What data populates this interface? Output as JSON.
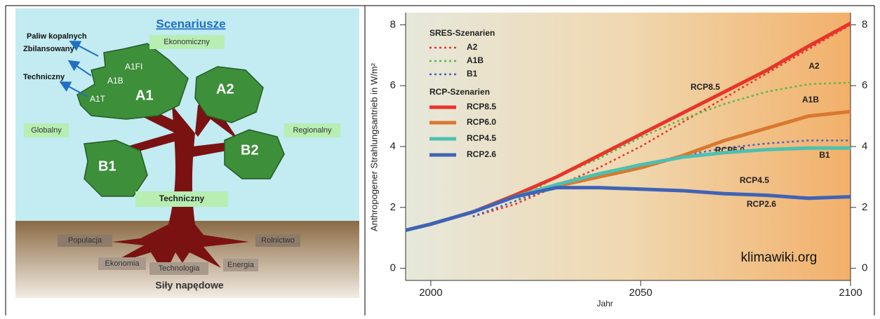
{
  "diagram": {
    "title": "Scenariusze",
    "arrow_labels": [
      "Paliw kopalnych",
      "Zbilansowany",
      "Techniczny"
    ],
    "top_label": "Ekonomiczny",
    "side_labels": [
      "Globalny",
      "Regionalny"
    ],
    "trunk_label": "Techniczny",
    "leaf_small": [
      "A1FI",
      "A1B",
      "A1T"
    ],
    "leaf_big": [
      "A1",
      "A2",
      "B1",
      "B2"
    ],
    "roots": [
      "Populacja",
      "Ekonomia",
      "Technologia",
      "Energia",
      "Rolnictwo"
    ],
    "footer": "Siły napędowe"
  },
  "chart_data": {
    "type": "line",
    "xlabel": "Jahr",
    "ylabel": "Anthropogener Strahlungsantrieb in W/m²",
    "watermark": "klimawiki.org",
    "legend_titles": [
      "SRES-Szenarien",
      "RCP-Szenarien"
    ],
    "x": [
      1994,
      2000,
      2010,
      2020,
      2030,
      2040,
      2050,
      2060,
      2070,
      2080,
      2090,
      2100
    ],
    "xlim": [
      1994,
      2100
    ],
    "xticks": [
      2000,
      2050,
      2100
    ],
    "ylim": [
      -0.4,
      8.4
    ],
    "yticks": [
      0,
      2,
      4,
      6,
      8
    ],
    "y2lim": [
      -0.4,
      8.4
    ],
    "y2ticks": [
      0,
      2,
      4,
      6,
      8
    ],
    "series": [
      {
        "name": "A2",
        "color": "#e8342a",
        "dashed": true,
        "values": [
          null,
          null,
          1.7,
          2.1,
          2.7,
          3.3,
          4.0,
          4.8,
          5.6,
          6.4,
          7.2,
          8.0
        ]
      },
      {
        "name": "A1B",
        "color": "#5bb843",
        "dashed": true,
        "values": [
          null,
          null,
          1.7,
          2.2,
          3.0,
          3.6,
          4.3,
          4.9,
          5.4,
          5.8,
          6.05,
          6.1
        ]
      },
      {
        "name": "B1",
        "color": "#4d5fc0",
        "dashed": true,
        "values": [
          null,
          null,
          1.7,
          2.2,
          2.7,
          3.1,
          3.4,
          3.7,
          3.95,
          4.1,
          4.2,
          4.2
        ]
      },
      {
        "name": "RCP8.5",
        "color": "#e8342a",
        "dashed": false,
        "values": [
          1.25,
          1.45,
          1.85,
          2.4,
          3.0,
          3.7,
          4.4,
          5.1,
          5.8,
          6.5,
          7.3,
          8.05
        ]
      },
      {
        "name": "RCP6.0",
        "color": "#d9782f",
        "dashed": false,
        "values": [
          1.25,
          1.45,
          1.85,
          2.35,
          2.7,
          3.0,
          3.3,
          3.7,
          4.2,
          4.6,
          5.0,
          5.15
        ]
      },
      {
        "name": "RCP4.5",
        "color": "#4dc0b0",
        "dashed": false,
        "values": [
          1.25,
          1.45,
          1.85,
          2.35,
          2.75,
          3.1,
          3.4,
          3.65,
          3.8,
          3.9,
          3.95,
          3.95
        ]
      },
      {
        "name": "RCP2.6",
        "color": "#3f63b5",
        "dashed": false,
        "values": [
          1.25,
          1.45,
          1.85,
          2.35,
          2.65,
          2.65,
          2.6,
          2.55,
          2.45,
          2.4,
          2.3,
          2.35
        ]
      }
    ]
  }
}
